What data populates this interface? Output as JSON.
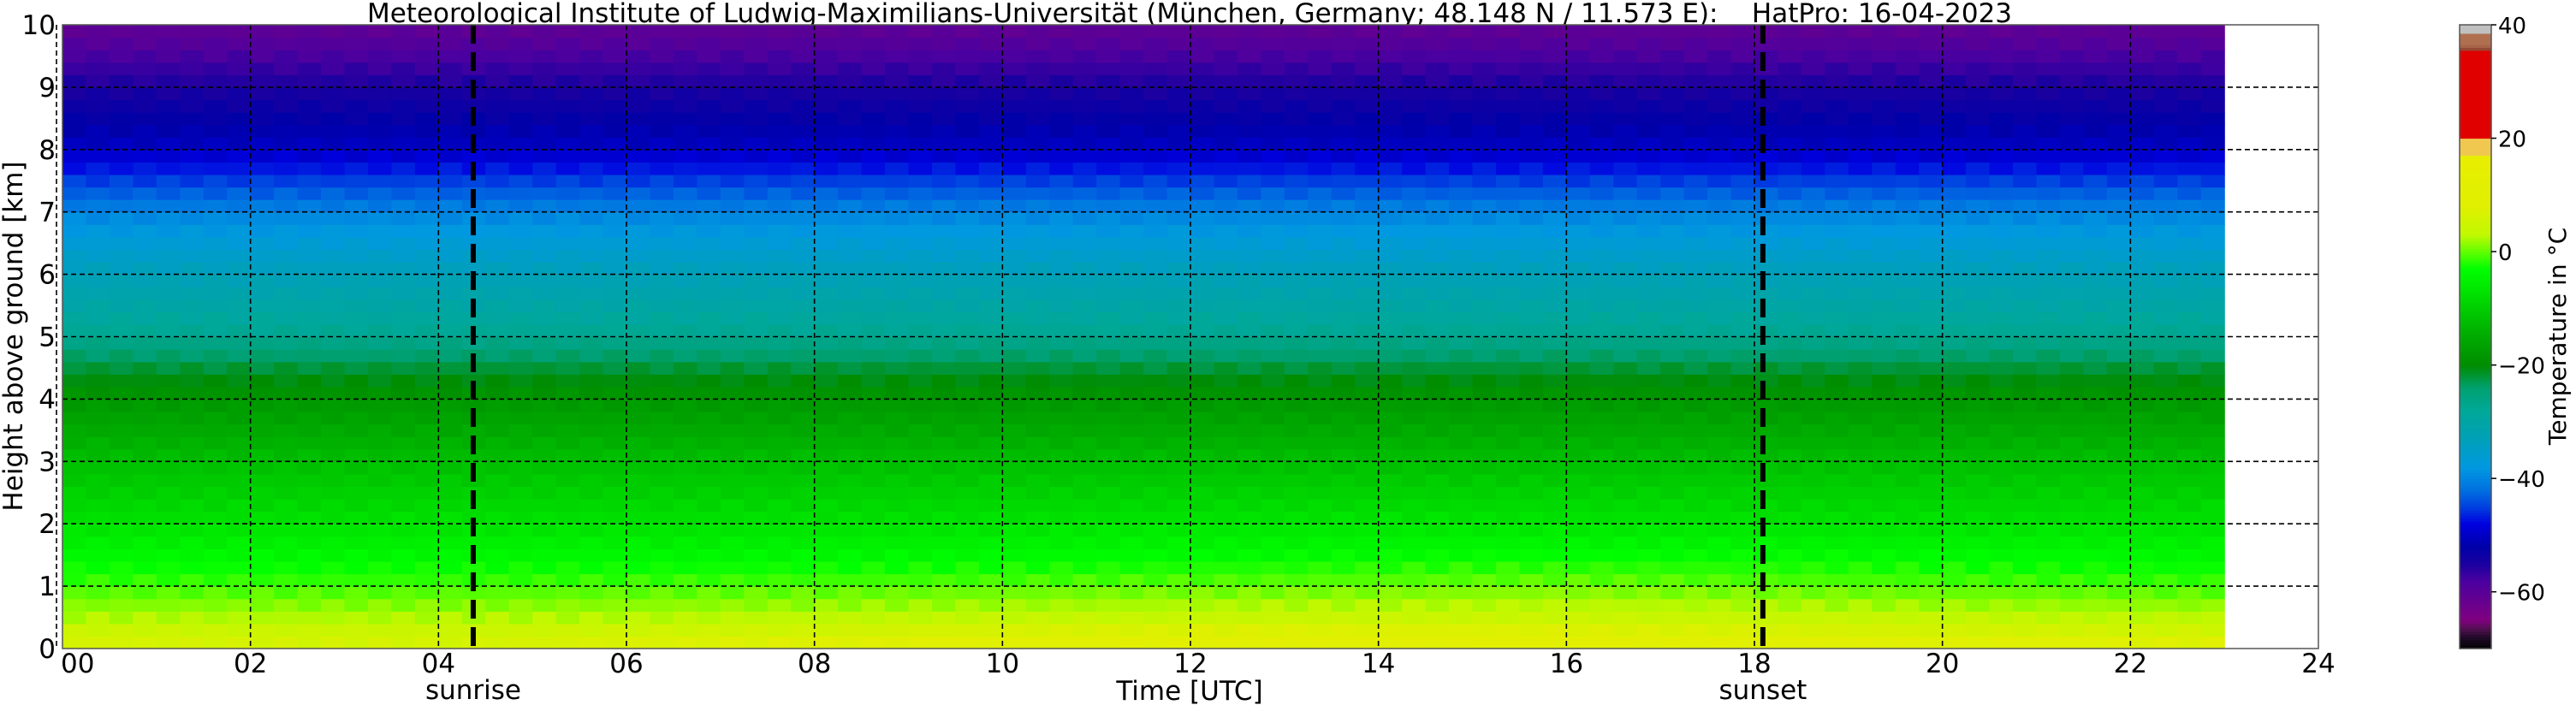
{
  "chart_data": {
    "type": "heatmap",
    "title": "Meteorological Institute of Ludwig-Maximilians-Universität (München, Germany; 48.148 N / 11.573 E):    HatPro: 16-04-2023",
    "xlabel": "Time [UTC]",
    "ylabel": "Height above ground [km]",
    "xlim": [
      0,
      24
    ],
    "ylim": [
      0,
      10
    ],
    "x_ticks": [
      "00",
      "02",
      "04",
      "06",
      "08",
      "10",
      "12",
      "14",
      "16",
      "18",
      "20",
      "22",
      "24"
    ],
    "y_ticks": [
      "0",
      "1",
      "2",
      "3",
      "4",
      "5",
      "6",
      "7",
      "8",
      "9",
      "10"
    ],
    "grid": true,
    "data_end_time": 23,
    "heights_km": [
      0,
      0.25,
      0.5,
      1,
      1.5,
      2,
      3,
      4,
      4.5,
      5,
      6,
      7,
      7.5,
      8,
      9,
      9.5,
      10
    ],
    "times_utc": [
      0,
      4,
      8,
      12,
      16,
      20,
      23
    ],
    "temperature_c": [
      [
        7,
        5,
        2.5,
        -1,
        -4,
        -7,
        -12,
        -18,
        -22,
        -27,
        -33,
        -40,
        -45,
        -50,
        -55,
        -58,
        -61
      ],
      [
        6.5,
        5,
        2.5,
        -1,
        -4,
        -7,
        -12,
        -18,
        -22,
        -27,
        -33,
        -40,
        -45,
        -50,
        -55,
        -58,
        -61
      ],
      [
        9,
        6,
        3,
        -0.5,
        -4,
        -7,
        -12,
        -18,
        -22,
        -27,
        -33,
        -40,
        -45,
        -50,
        -55,
        -58,
        -61
      ],
      [
        11,
        8,
        4,
        0,
        -3.5,
        -6.5,
        -12,
        -18,
        -22,
        -27,
        -33,
        -40,
        -45,
        -50,
        -55,
        -58,
        -61
      ],
      [
        11.5,
        8,
        4.5,
        0.5,
        -3,
        -6.5,
        -12,
        -18,
        -22,
        -27,
        -33,
        -40,
        -45,
        -50,
        -55,
        -58,
        -61
      ],
      [
        9,
        6.5,
        3.5,
        -0.5,
        -3.5,
        -7,
        -12,
        -18,
        -22,
        -27,
        -33,
        -40,
        -45,
        -50,
        -55,
        -58,
        -61
      ],
      [
        8.5,
        6,
        3,
        -1,
        -4,
        -7,
        -12,
        -18,
        -22,
        -27,
        -33,
        -40,
        -45,
        -50,
        -55,
        -58,
        -61
      ]
    ],
    "annotations": [
      {
        "label": "sunrise",
        "time_utc": 4.37
      },
      {
        "label": "sunset",
        "time_utc": 18.09
      }
    ],
    "colorbar": {
      "label": "Temperature in $^\\circ$C",
      "label_text": "Temperature in °C",
      "range": [
        -70,
        40
      ],
      "ticks": [
        "−60",
        "−40",
        "−20",
        "0",
        "20",
        "40"
      ],
      "tick_values": [
        -60,
        -40,
        -20,
        0,
        20,
        40
      ],
      "stops": [
        {
          "t": -70,
          "color": "#000000"
        },
        {
          "t": -68,
          "color": "#200a28"
        },
        {
          "t": -66.5,
          "color": "#501050"
        },
        {
          "t": -65,
          "color": "#800080"
        },
        {
          "t": -58,
          "color": "#4a00a0"
        },
        {
          "t": -55,
          "color": "#1a00a0"
        },
        {
          "t": -52,
          "color": "#0000a8"
        },
        {
          "t": -48,
          "color": "#0000e0"
        },
        {
          "t": -45,
          "color": "#0040e0"
        },
        {
          "t": -42,
          "color": "#0070e0"
        },
        {
          "t": -38,
          "color": "#0098e0"
        },
        {
          "t": -33,
          "color": "#00a0b8"
        },
        {
          "t": -28,
          "color": "#00a898"
        },
        {
          "t": -24,
          "color": "#00a070"
        },
        {
          "t": -20,
          "color": "#008c00"
        },
        {
          "t": -14,
          "color": "#00b000"
        },
        {
          "t": -8,
          "color": "#00dc00"
        },
        {
          "t": -3,
          "color": "#00ff00"
        },
        {
          "t": 0,
          "color": "#60ff00"
        },
        {
          "t": 3,
          "color": "#c0f800"
        },
        {
          "t": 8,
          "color": "#e0f000"
        },
        {
          "t": 16.9,
          "color": "#e8ee00"
        },
        {
          "t": 17,
          "color": "#f0c850"
        },
        {
          "t": 19.9,
          "color": "#f0c850"
        },
        {
          "t": 20,
          "color": "#e00000"
        },
        {
          "t": 35.4,
          "color": "#e00000"
        },
        {
          "t": 35.5,
          "color": "#8b3a2a"
        },
        {
          "t": 36.5,
          "color": "#b07050"
        },
        {
          "t": 38.3,
          "color": "#b07050"
        },
        {
          "t": 38.5,
          "color": "#c0c0c0"
        },
        {
          "t": 40,
          "color": "#c0c0c0"
        }
      ]
    }
  }
}
